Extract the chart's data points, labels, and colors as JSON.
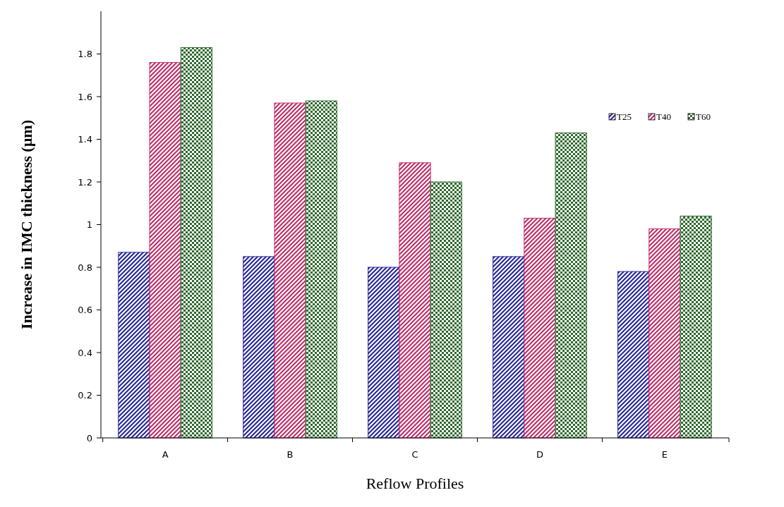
{
  "chart_data": {
    "type": "bar",
    "xlabel": "Reflow Profiles",
    "ylabel": "Increase in IMC thickness (µm)",
    "categories": [
      "A",
      "B",
      "C",
      "D",
      "E"
    ],
    "series": [
      {
        "name": "T25",
        "color": "#2a2a9a",
        "values": [
          0.87,
          0.85,
          0.8,
          0.85,
          0.78
        ]
      },
      {
        "name": "T40",
        "color": "#c0306a",
        "values": [
          1.76,
          1.57,
          1.29,
          1.03,
          0.98
        ]
      },
      {
        "name": "T60",
        "color": "#2e6a2e",
        "values": [
          1.83,
          1.58,
          1.2,
          1.43,
          1.04
        ]
      }
    ],
    "ylim": [
      0,
      2
    ],
    "yticks": [
      0,
      0.2,
      0.4,
      0.6,
      0.8,
      1,
      1.2,
      1.4,
      1.6,
      1.8
    ],
    "grid": false,
    "legend": "top right"
  }
}
